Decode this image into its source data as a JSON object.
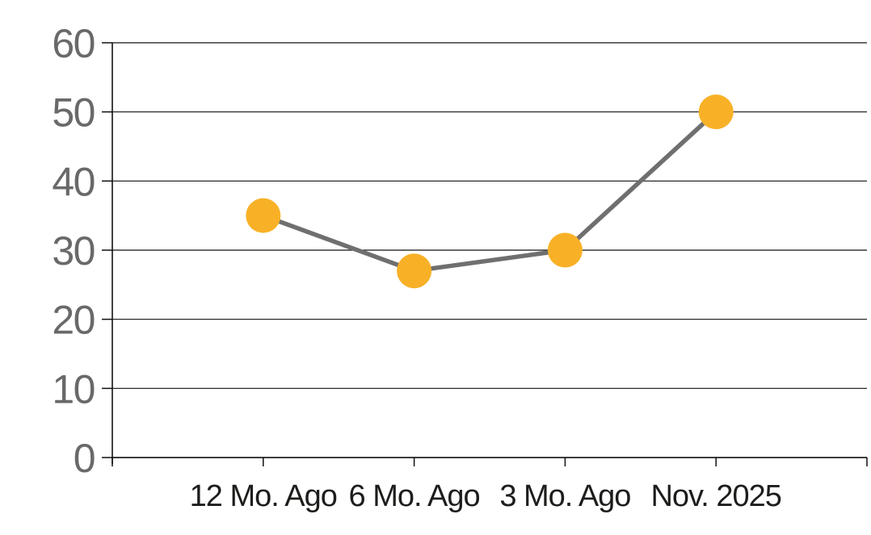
{
  "chart_data": {
    "type": "line",
    "categories": [
      "12 Mo. Ago",
      "6 Mo. Ago",
      "3 Mo. Ago",
      "Nov. 2025"
    ],
    "series": [
      {
        "values": [
          35,
          27,
          30,
          50
        ]
      }
    ],
    "title": "",
    "xlabel": "",
    "ylabel": "",
    "ylim": [
      0,
      60
    ],
    "yticks": [
      0,
      10,
      20,
      30,
      40,
      50,
      60
    ],
    "grid": true,
    "legend": "none",
    "marker": {
      "shape": "circle",
      "color": "#F8B127",
      "radius": 21.5
    },
    "line": {
      "color": "#6F6F6F",
      "width": 5.5
    },
    "colors": {
      "axis": "#111111",
      "gridline": "#111111",
      "y_tick_label": "#696969",
      "x_tick_label": "#1D1D1B",
      "background": "#FFFFFF"
    }
  }
}
